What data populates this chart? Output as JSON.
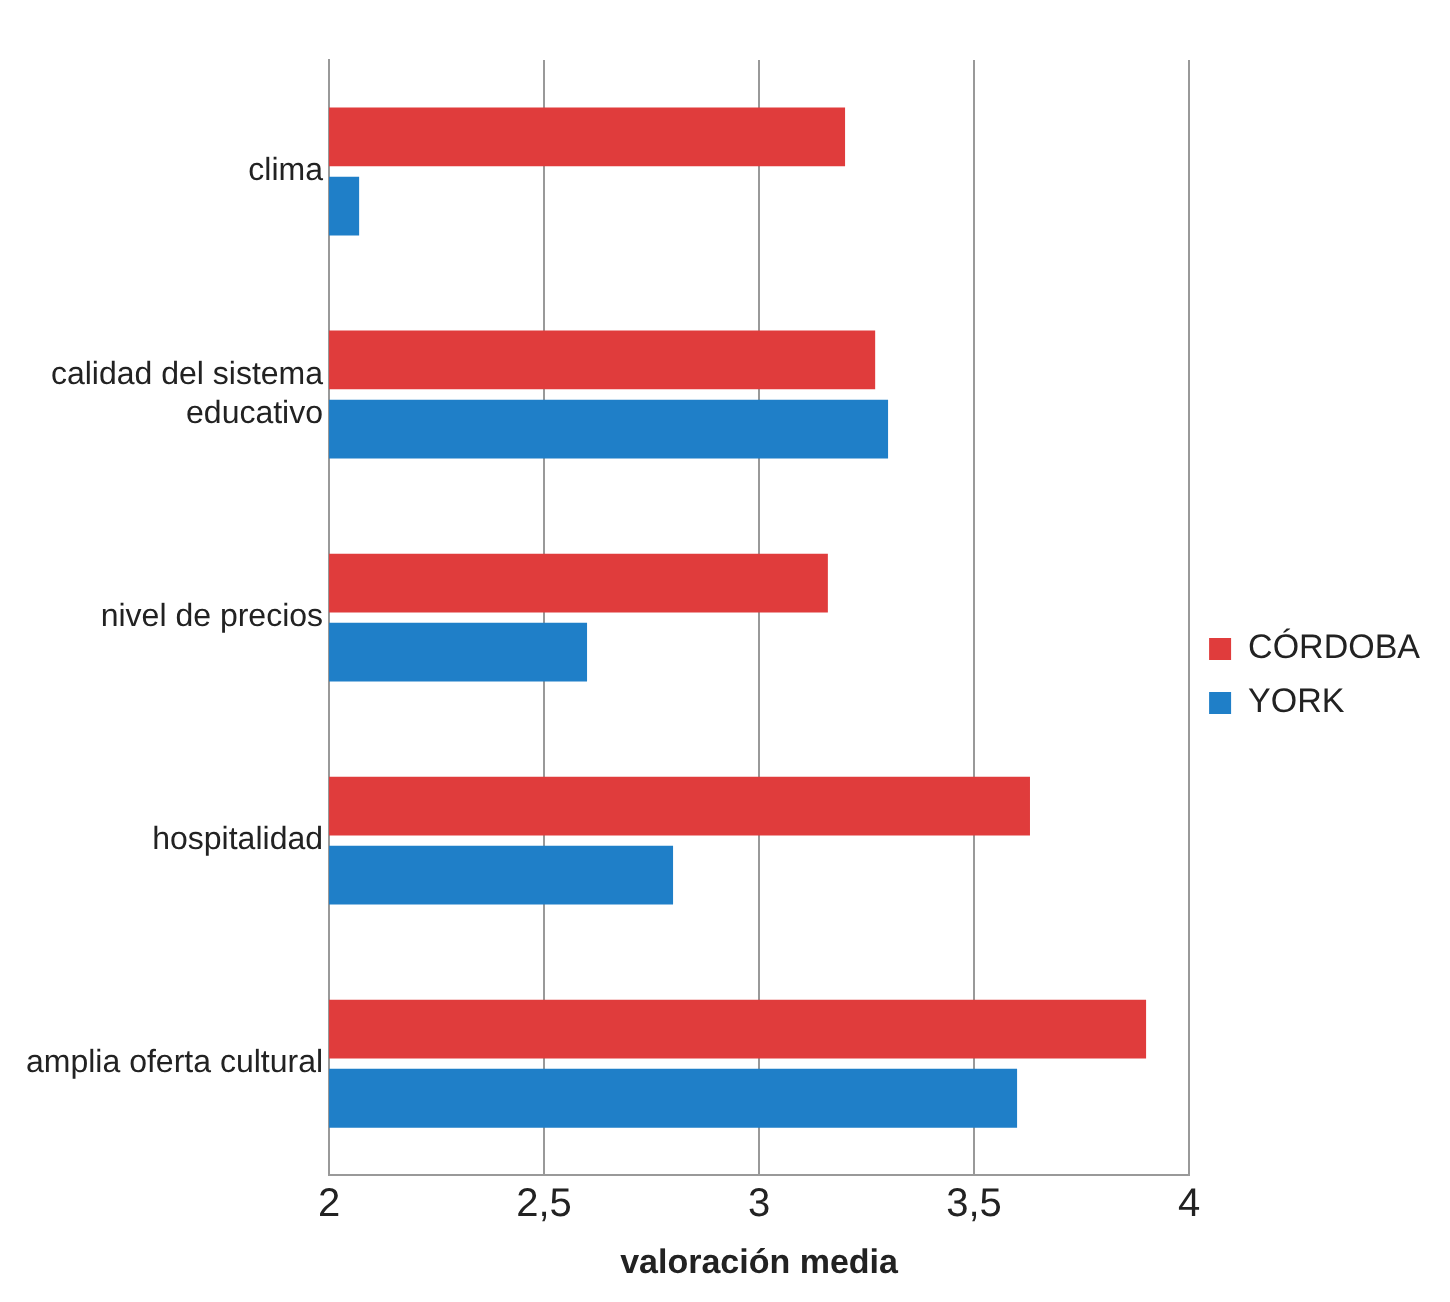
{
  "chart_data": {
    "type": "bar",
    "orientation": "horizontal",
    "xlabel": "valoración media",
    "categories": [
      "clima",
      "calidad del sistema educativo",
      "nivel de precios",
      "hospitalidad",
      "amplia oferta cultural"
    ],
    "series": [
      {
        "name": "CÓRDOBA",
        "color": "#e03c3c",
        "values": [
          3.2,
          3.27,
          3.16,
          3.63,
          3.9
        ]
      },
      {
        "name": "YORK",
        "color": "#1f7fc8",
        "values": [
          2.07,
          3.3,
          2.6,
          2.8,
          3.6
        ]
      }
    ],
    "xlim": [
      2,
      4
    ],
    "xticks": [
      2,
      {
        "value": 2.5,
        "label": "2,5"
      },
      3,
      {
        "value": 3.5,
        "label": "3,5"
      },
      4
    ],
    "grid": "x",
    "legend": "right"
  }
}
